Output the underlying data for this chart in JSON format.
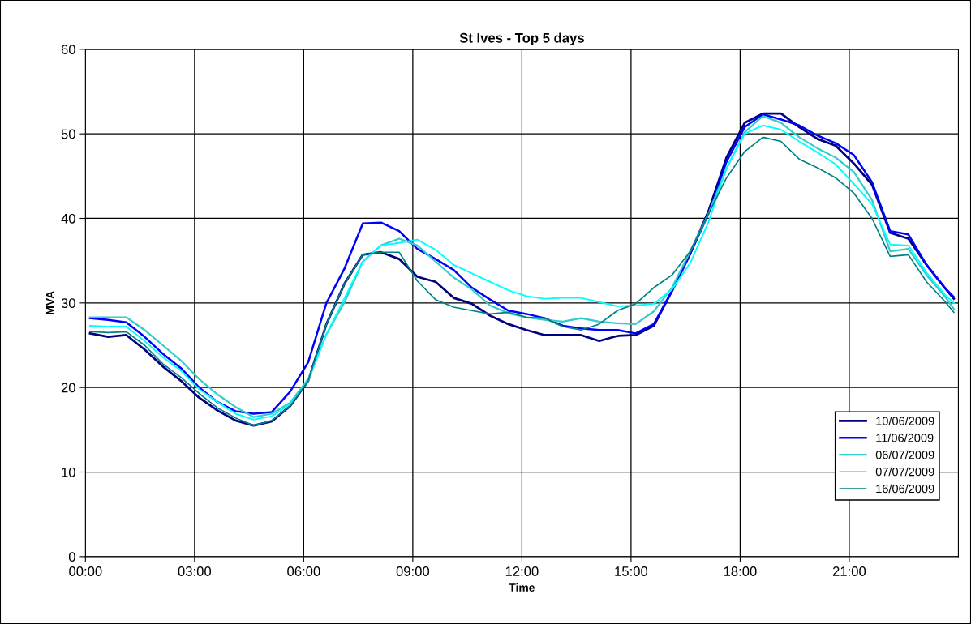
{
  "chart_data": {
    "type": "line",
    "title": "St Ives - Top 5 days",
    "xlabel": "Time",
    "ylabel": "MVA",
    "x": [
      0.125,
      0.625,
      1.125,
      1.625,
      2.125,
      2.625,
      3.125,
      3.625,
      4.125,
      4.625,
      5.125,
      5.625,
      6.125,
      6.625,
      7.125,
      7.625,
      8.125,
      8.625,
      9.125,
      9.625,
      10.125,
      10.625,
      11.125,
      11.625,
      12.125,
      12.625,
      13.125,
      13.625,
      14.125,
      14.625,
      15.125,
      15.625,
      16.125,
      16.625,
      17.125,
      17.625,
      18.125,
      18.625,
      19.125,
      19.625,
      20.125,
      20.625,
      21.125,
      21.625,
      22.125,
      22.625,
      23.125,
      23.625,
      23.875
    ],
    "series": [
      {
        "name": "10/06/2009",
        "color": "#000080",
        "values": [
          26.4,
          26.0,
          26.2,
          24.5,
          22.5,
          20.8,
          18.8,
          17.3,
          16.1,
          15.5,
          16.0,
          17.8,
          20.8,
          27.5,
          32.3,
          35.7,
          36.0,
          35.2,
          33.1,
          32.5,
          30.6,
          29.9,
          28.5,
          27.5,
          26.8,
          26.2,
          26.2,
          26.2,
          25.5,
          26.1,
          26.2,
          27.3,
          31.4,
          35.8,
          40.8,
          47.2,
          51.3,
          52.4,
          52.4,
          50.8,
          49.4,
          48.6,
          46.5,
          44.0,
          38.3,
          37.6,
          34.5,
          31.8,
          30.5
        ]
      },
      {
        "name": "11/06/2009",
        "color": "#0000ff",
        "values": [
          28.2,
          28.0,
          27.7,
          26.0,
          24.0,
          22.3,
          20.0,
          18.3,
          17.2,
          16.9,
          17.1,
          19.5,
          23.0,
          30.0,
          34.1,
          39.4,
          39.5,
          38.5,
          36.4,
          35.2,
          33.9,
          31.8,
          30.4,
          29.1,
          28.7,
          28.2,
          27.3,
          27.0,
          26.8,
          26.8,
          26.4,
          27.5,
          31.4,
          35.8,
          40.5,
          46.7,
          50.8,
          52.3,
          51.7,
          51.0,
          49.8,
          48.9,
          47.5,
          44.3,
          38.5,
          38.1,
          34.5,
          31.8,
          30.7
        ]
      },
      {
        "name": "06/07/2009",
        "color": "#33cccc",
        "values": [
          28.3,
          28.3,
          28.3,
          26.8,
          25.0,
          23.2,
          21.0,
          19.2,
          17.7,
          16.5,
          16.9,
          18.2,
          21.0,
          26.3,
          30.1,
          34.9,
          36.8,
          37.6,
          36.8,
          34.9,
          33.0,
          31.6,
          29.7,
          28.8,
          28.3,
          28.0,
          27.8,
          28.2,
          27.8,
          27.6,
          27.5,
          29.0,
          31.8,
          36.1,
          40.5,
          45.9,
          50.2,
          52.1,
          51.3,
          49.6,
          48.3,
          47.2,
          45.5,
          42.2,
          36.1,
          36.4,
          33.3,
          30.8,
          29.3
        ]
      },
      {
        "name": "07/07/2009",
        "color": "#00ffff",
        "values": [
          27.3,
          27.2,
          27.2,
          25.5,
          23.6,
          22.0,
          19.8,
          18.3,
          16.9,
          16.2,
          16.6,
          18.0,
          20.8,
          26.3,
          30.6,
          34.9,
          36.8,
          37.1,
          37.5,
          36.3,
          34.5,
          33.5,
          32.5,
          31.5,
          30.8,
          30.5,
          30.6,
          30.6,
          30.1,
          29.6,
          29.7,
          29.9,
          31.6,
          34.7,
          39.5,
          46.0,
          50.0,
          51.0,
          50.5,
          49.1,
          47.8,
          46.4,
          44.1,
          41.7,
          36.9,
          36.8,
          33.6,
          31.0,
          30.0
        ]
      },
      {
        "name": "16/06/2009",
        "color": "#008080",
        "values": [
          26.6,
          26.5,
          26.6,
          25.0,
          22.8,
          21.2,
          19.3,
          17.6,
          16.4,
          15.5,
          16.1,
          17.8,
          20.8,
          27.5,
          32.3,
          35.7,
          36.0,
          36.0,
          32.6,
          30.4,
          29.5,
          29.1,
          28.7,
          28.9,
          28.3,
          28.2,
          27.2,
          26.8,
          27.5,
          29.1,
          29.9,
          31.8,
          33.3,
          36.1,
          40.5,
          44.8,
          47.9,
          49.6,
          49.1,
          47.0,
          46.0,
          44.8,
          43.0,
          40.0,
          35.5,
          35.7,
          32.5,
          30.2,
          28.9
        ]
      }
    ],
    "xlim": [
      0,
      24
    ],
    "xticks": [
      {
        "value": 0,
        "label": "00:00"
      },
      {
        "value": 3,
        "label": "03:00"
      },
      {
        "value": 6,
        "label": "06:00"
      },
      {
        "value": 9,
        "label": "09:00"
      },
      {
        "value": 12,
        "label": "12:00"
      },
      {
        "value": 15,
        "label": "15:00"
      },
      {
        "value": 18,
        "label": "18:00"
      },
      {
        "value": 21,
        "label": "21:00"
      }
    ],
    "ylim": [
      0,
      60
    ],
    "yticks": [
      0,
      10,
      20,
      30,
      40,
      50,
      60
    ],
    "grid": true,
    "legend": "bottom right",
    "marker": "none",
    "line_style": "solid"
  }
}
